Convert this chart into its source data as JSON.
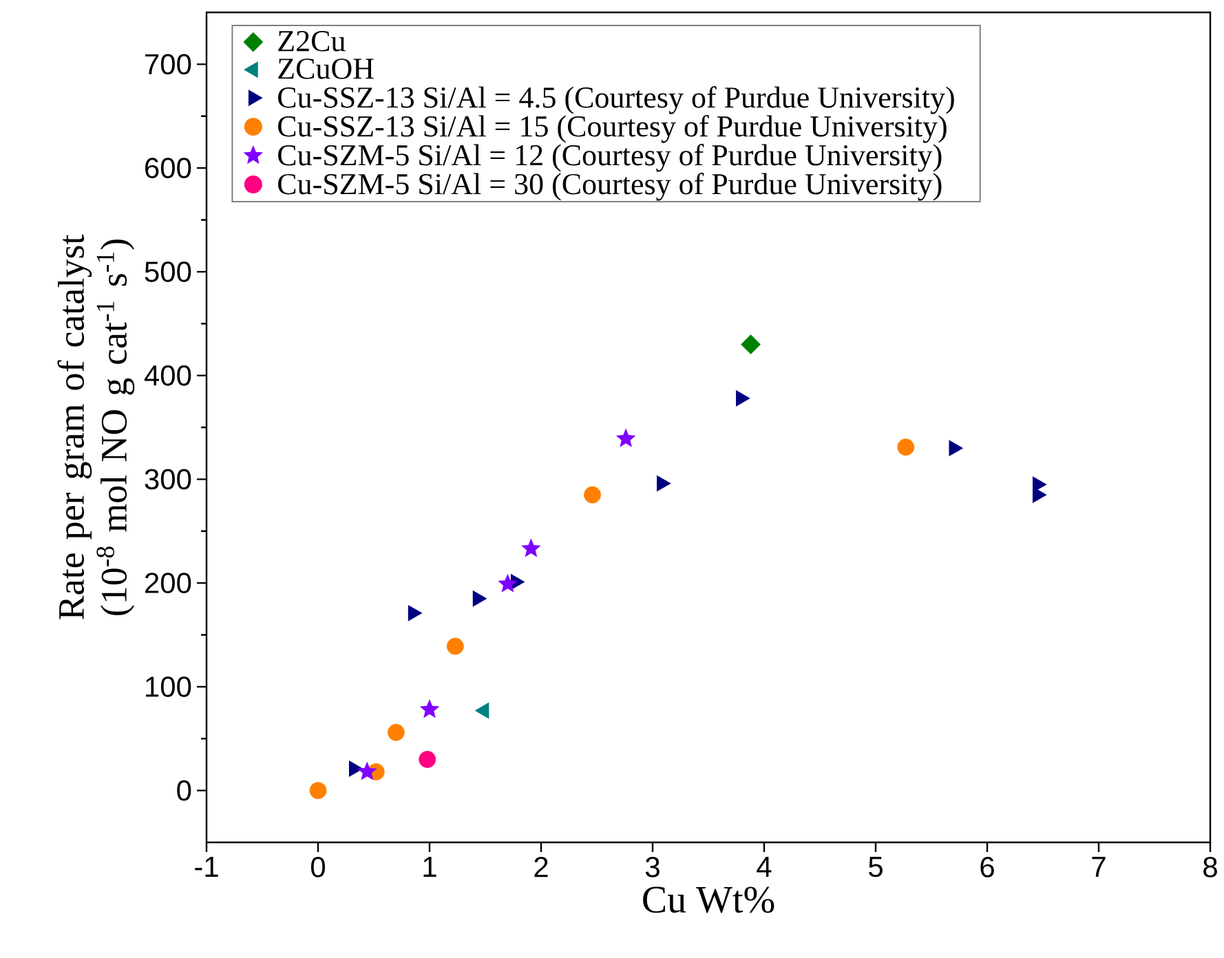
{
  "chart_data": {
    "type": "scatter",
    "xlabel": "Cu Wt%",
    "ylabel": "Rate per gram of catalyst (10$^{-8}$ mol NO g cat$^{-1}$ s$^{-1}$)",
    "xlim": [
      -1,
      8
    ],
    "ylim": [
      -50,
      750
    ],
    "xticks": [
      -1,
      0,
      1,
      2,
      3,
      4,
      5,
      6,
      7,
      8
    ],
    "yticks": [
      0,
      100,
      200,
      300,
      400,
      500,
      600,
      700
    ],
    "grid": false,
    "legend": "top left",
    "series": [
      {
        "name": "Z2Cu",
        "color": "#008000",
        "marker": "diamond",
        "x": [
          3.88
        ],
        "values": [
          430
        ]
      },
      {
        "name": "ZCuOH",
        "color": "#008080",
        "marker": "triangle-left",
        "x": [
          1.49
        ],
        "values": [
          77
        ]
      },
      {
        "name": "Cu-SSZ-13 Si/Al = 4.5 (Courtesy of Purdue University)",
        "color": "#000080",
        "marker": "triangle-right",
        "x": [
          0.32,
          0.85,
          1.43,
          1.77,
          3.08,
          3.79,
          5.7,
          6.45,
          6.45
        ],
        "values": [
          21,
          171,
          185,
          201,
          296,
          378,
          330,
          295,
          285
        ]
      },
      {
        "name": "Cu-SSZ-13 Si/Al = 15 (Courtesy of Purdue University)",
        "color": "#ff8000",
        "marker": "circle",
        "x": [
          0,
          0.52,
          0.7,
          1.23,
          2.46,
          5.27
        ],
        "values": [
          0,
          18,
          56,
          139,
          285,
          331
        ]
      },
      {
        "name": "Cu-SZM-5 Si/Al = 12 (Courtesy of Purdue University)",
        "color": "#8000ff",
        "marker": "star",
        "x": [
          0.44,
          1.0,
          1.7,
          1.91,
          2.76
        ],
        "values": [
          18,
          78,
          199,
          233,
          339
        ]
      },
      {
        "name": "Cu-SZM-5 Si/Al = 30 (Courtesy of Purdue University)",
        "color": "#ff0080",
        "marker": "circle",
        "x": [
          0.98
        ],
        "values": [
          30
        ]
      }
    ]
  }
}
